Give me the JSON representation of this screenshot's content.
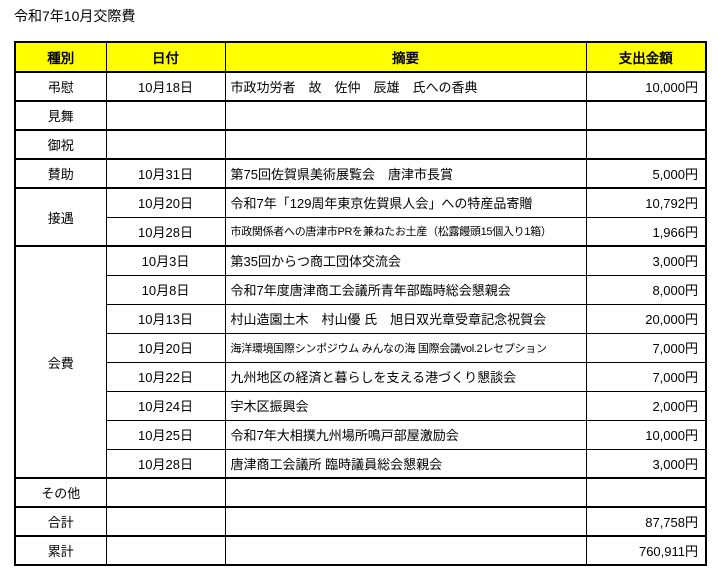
{
  "page_title": "令和7年10月交際費",
  "colors": {
    "header_background": "#ffff00",
    "border": "#000000",
    "text": "#000000",
    "page_background": "#ffffff"
  },
  "table": {
    "headers": {
      "category": "種別",
      "date": "日付",
      "summary": "摘要",
      "amount": "支出金額"
    },
    "groups": [
      {
        "category": "弔慰",
        "rows": [
          {
            "date": "10月18日",
            "summary": "市政功労者　故　佐仲　辰雄　氏への香典",
            "amount": "10,000円"
          }
        ]
      },
      {
        "category": "見舞",
        "rows": [
          {
            "date": "",
            "summary": "",
            "amount": ""
          }
        ]
      },
      {
        "category": "御祝",
        "rows": [
          {
            "date": "",
            "summary": "",
            "amount": ""
          }
        ]
      },
      {
        "category": "賛助",
        "rows": [
          {
            "date": "10月31日",
            "summary": "第75回佐賀県美術展覧会　唐津市長賞",
            "amount": "5,000円"
          }
        ]
      },
      {
        "category": "接遇",
        "rows": [
          {
            "date": "10月20日",
            "summary": "令和7年「129周年東京佐賀県人会」への特産品寄贈",
            "amount": "10,792円"
          },
          {
            "date": "10月28日",
            "summary": "市政関係者への唐津市PRを兼ねたお土産（松露饅頭15個入り1箱）",
            "amount": "1,966円"
          }
        ]
      },
      {
        "category": "会費",
        "rows": [
          {
            "date": "10月3日",
            "summary": "第35回からつ商工団体交流会",
            "amount": "3,000円"
          },
          {
            "date": "10月8日",
            "summary": "令和7年度唐津商工会議所青年部臨時総会懇親会",
            "amount": "8,000円"
          },
          {
            "date": "10月13日",
            "summary": "村山造園土木　村山優 氏　旭日双光章受章記念祝賀会",
            "amount": "20,000円"
          },
          {
            "date": "10月20日",
            "summary": "海洋環境国際シンポジウム みんなの海 国際会議vol.2レセプション",
            "amount": "7,000円"
          },
          {
            "date": "10月22日",
            "summary": "九州地区の経済と暮らしを支える港づくり懇談会",
            "amount": "7,000円"
          },
          {
            "date": "10月24日",
            "summary": "宇木区振興会",
            "amount": "2,000円"
          },
          {
            "date": "10月25日",
            "summary": "令和7年大相撲九州場所鳴戸部屋激励会",
            "amount": "10,000円"
          },
          {
            "date": "10月28日",
            "summary": "唐津商工会議所 臨時議員総会懇親会",
            "amount": "3,000円"
          }
        ]
      },
      {
        "category": "その他",
        "rows": [
          {
            "date": "",
            "summary": "",
            "amount": ""
          }
        ]
      },
      {
        "category": "合計",
        "rows": [
          {
            "date": "",
            "summary": "",
            "amount": "87,758円"
          }
        ]
      },
      {
        "category": "累計",
        "rows": [
          {
            "date": "",
            "summary": "",
            "amount": "760,911円"
          }
        ]
      }
    ]
  }
}
